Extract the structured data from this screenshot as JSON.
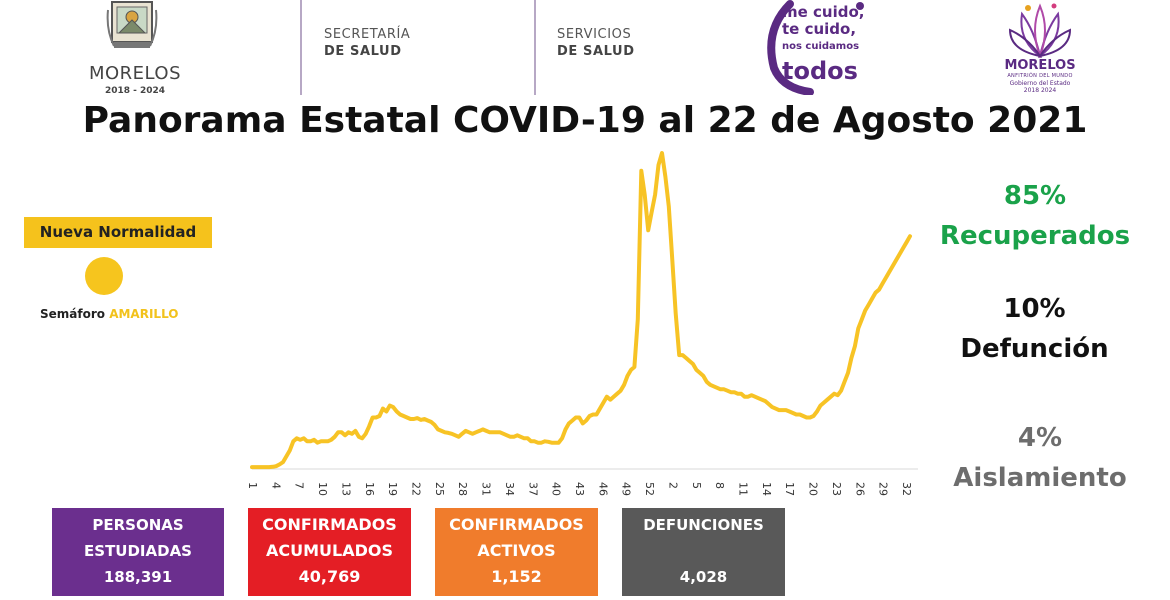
{
  "header": {
    "state_name": "MORELOS",
    "state_years": "2018 - 2024",
    "dept1_line1": "SECRETARÍA",
    "dept1_line2": "DE SALUD",
    "dept2_line1": "SERVICIOS",
    "dept2_line2": "DE SALUD",
    "campaign_l1": "me cuido,",
    "campaign_l2": "te cuido,",
    "campaign_l3": "nos cuidamos",
    "campaign_l4": "todos",
    "gov_name": "MORELOS",
    "gov_sub": "ANFITRIÓN DEL MUNDO",
    "gov_sub2": "Gobierno del Estado",
    "gov_years": "2018 2024"
  },
  "title": "Panorama Estatal COVID-19 al 22 de Agosto 2021",
  "semaforo": {
    "badge": "Nueva Normalidad",
    "label": "Semáforo",
    "color_word": "AMARILLO",
    "color": "#f6c51e"
  },
  "stats": {
    "recuperados_pct": "85%",
    "recuperados_label": "Recuperados",
    "defuncion_pct": "10%",
    "defuncion_label": "Defunción",
    "aislamiento_pct": "4%",
    "aislamiento_label": "Aislamiento"
  },
  "boxes": [
    {
      "label_l1": "PERSONAS",
      "label_l2": "ESTUDIADAS",
      "value": "188,391",
      "color": "#6b2f8e"
    },
    {
      "label_l1": "CONFIRMADOS",
      "label_l2": "ACUMULADOS",
      "value": "40,769",
      "color": "#e41e25"
    },
    {
      "label_l1": "CONFIRMADOS",
      "label_l2": "ACTIVOS",
      "value": "1,152",
      "color": "#f07c2c"
    },
    {
      "label_l1": "DEFUNCIONES",
      "label_l2": "",
      "value": "4,028",
      "color": "#595959"
    }
  ],
  "chart_data": {
    "type": "line",
    "series_color": "#f7c325",
    "tick_labels": [
      "1",
      "4",
      "7",
      "10",
      "13",
      "16",
      "19",
      "22",
      "25",
      "28",
      "31",
      "34",
      "37",
      "40",
      "43",
      "46",
      "49",
      "52",
      "2",
      "5",
      "8",
      "11",
      "14",
      "17",
      "20",
      "23",
      "26",
      "29",
      "32"
    ],
    "values": [
      0.3,
      0.3,
      0.3,
      0.3,
      0.3,
      0.3,
      0.4,
      0.6,
      1.2,
      2.0,
      4.0,
      6.0,
      9.0,
      10.0,
      9.5,
      10.0,
      9.0,
      9.0,
      9.5,
      8.5,
      9.0,
      9.0,
      9.0,
      9.5,
      10.5,
      12.0,
      12.0,
      11.0,
      12.0,
      11.5,
      12.5,
      10.5,
      10.0,
      11.5,
      14.0,
      17.0,
      17.0,
      17.5,
      20.0,
      19.0,
      21.0,
      20.5,
      19.0,
      18.0,
      17.5,
      17.0,
      16.5,
      16.5,
      16.8,
      16.2,
      16.5,
      16.0,
      15.5,
      14.5,
      13.0,
      12.5,
      12.0,
      11.8,
      11.5,
      11.0,
      10.5,
      11.5,
      12.5,
      12.0,
      11.5,
      12.0,
      12.5,
      13.0,
      12.5,
      12.0,
      12.0,
      12.0,
      12.0,
      11.5,
      11.0,
      10.5,
      10.5,
      11.0,
      10.5,
      10.0,
      10.0,
      9.0,
      9.0,
      8.5,
      8.5,
      9.0,
      8.8,
      8.5,
      8.5,
      8.5,
      10.0,
      13.0,
      15.0,
      16.0,
      17.0,
      17.0,
      15.0,
      16.0,
      17.5,
      18.0,
      18.0,
      20.0,
      22.0,
      24.0,
      23.0,
      24.0,
      25.0,
      26.0,
      28.0,
      31.0,
      33.0,
      34.0,
      50.0,
      100.0,
      92.0,
      80.0,
      86.0,
      92.0,
      102.0,
      106.0,
      98.0,
      88.0,
      70.0,
      52.0,
      38.0,
      38.0,
      37.0,
      36.0,
      35.0,
      33.0,
      32.0,
      31.0,
      29.0,
      28.0,
      27.5,
      27.0,
      26.5,
      26.5,
      26.0,
      25.5,
      25.5,
      25.0,
      25.0,
      24.0,
      24.0,
      24.5,
      24.0,
      23.5,
      23.0,
      22.5,
      21.5,
      20.5,
      20.0,
      19.5,
      19.5,
      19.5,
      19.0,
      18.5,
      18.0,
      18.0,
      17.5,
      17.0,
      17.0,
      17.5,
      19.0,
      21.0,
      22.0,
      23.0,
      24.0,
      25.0,
      24.5,
      26.0,
      29.0,
      32.0,
      37.0,
      41.0,
      47.0,
      50.0,
      53.0,
      55.0,
      57.0,
      59.0,
      60.0,
      62.0,
      64.0,
      66.0,
      68.0,
      70.0,
      72.0,
      74.0,
      76.0,
      78.0
    ],
    "ylim": [
      0,
      106
    ]
  }
}
